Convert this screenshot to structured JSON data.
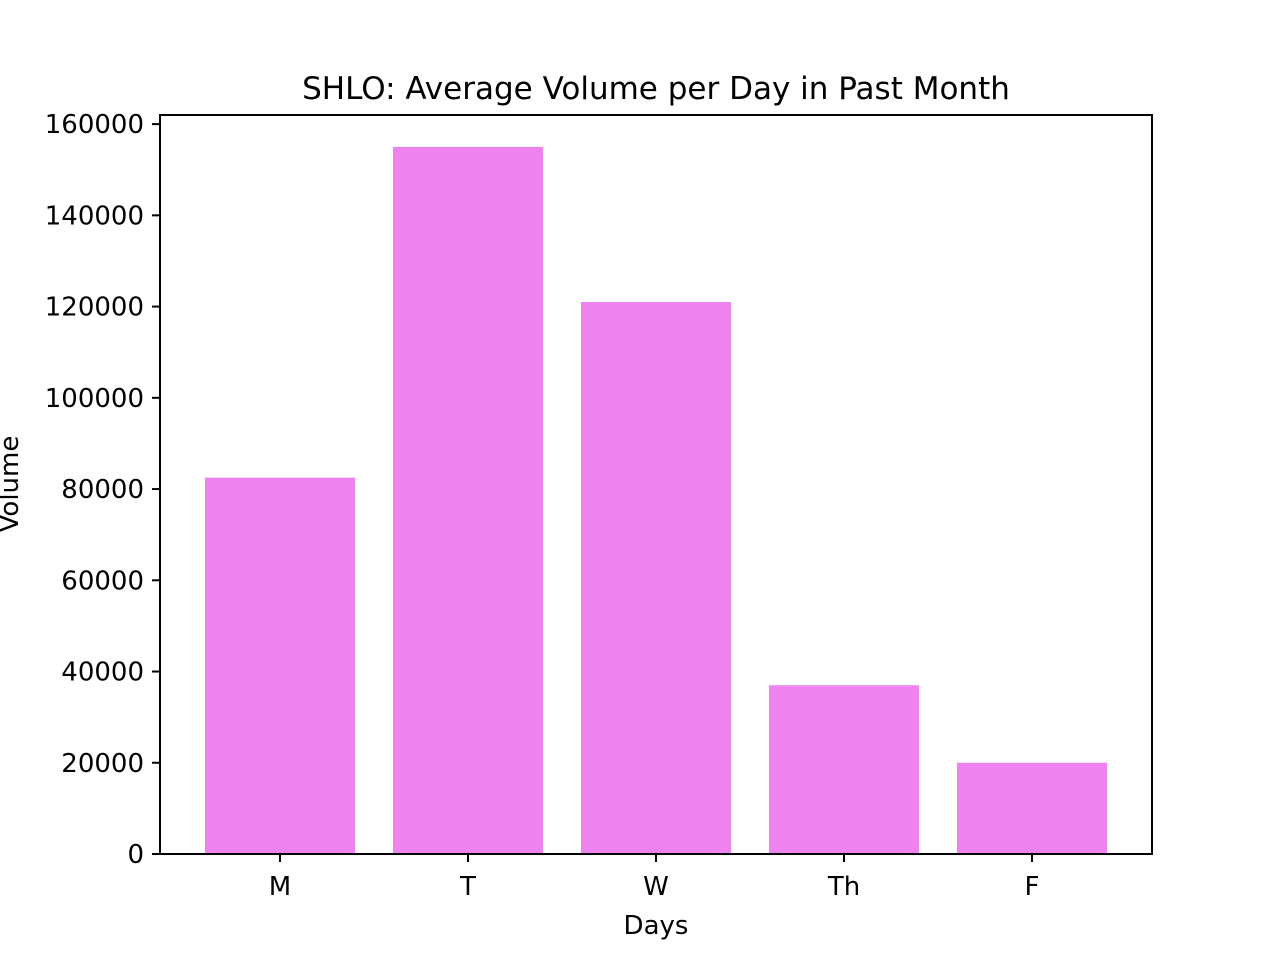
{
  "chart_data": {
    "type": "bar",
    "title": "SHLO: Average Volume per Day in Past Month",
    "xlabel": "Days",
    "ylabel": "Volume",
    "categories": [
      "M",
      "T",
      "W",
      "Th",
      "F"
    ],
    "values": [
      82500,
      155000,
      121000,
      37000,
      20000
    ],
    "ylim": [
      0,
      162000
    ],
    "yticks": [
      0,
      20000,
      40000,
      60000,
      80000,
      100000,
      120000,
      140000,
      160000
    ],
    "ytick_labels": [
      "0",
      "20000",
      "40000",
      "60000",
      "80000",
      "100000",
      "120000",
      "140000",
      "160000"
    ],
    "bar_color": "#ee82ee",
    "grid": false,
    "legend": "none"
  }
}
